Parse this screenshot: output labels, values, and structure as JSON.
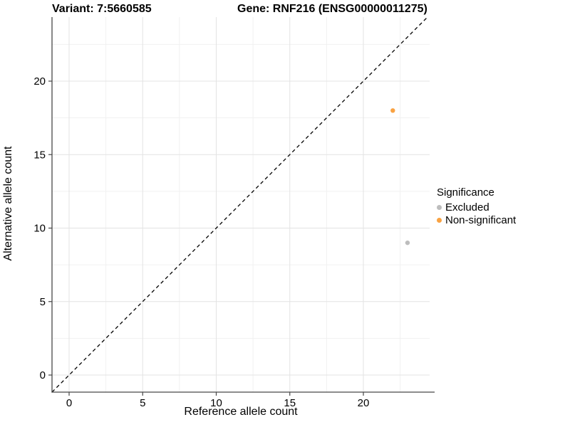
{
  "header": {
    "variant_title": "Variant: 7:5660585",
    "gene_title": "Gene: RNF216 (ENSG00000011275)"
  },
  "axes": {
    "x_label": "Reference allele count",
    "y_label": "Alternative allele count"
  },
  "legend": {
    "title": "Significance",
    "items": [
      {
        "label": "Excluded",
        "color": "#BDBDBD"
      },
      {
        "label": "Non-significant",
        "color": "#F9A242"
      }
    ]
  },
  "chart_data": {
    "type": "scatter",
    "title": "Variant: 7:5660585   Gene: RNF216 (ENSG00000011275)",
    "xlabel": "Reference allele count",
    "ylabel": "Alternative allele count",
    "xlim": [
      -1.16,
      24.5
    ],
    "ylim": [
      -1.16,
      24.4
    ],
    "x_ticks": [
      0,
      5,
      10,
      15,
      20
    ],
    "y_ticks": [
      0,
      5,
      10,
      15,
      20
    ],
    "minor_gridlines": [
      2.5,
      7.5,
      12.5,
      17.5,
      22.5
    ],
    "grid": true,
    "legend_title": "Significance",
    "legend_position": "right",
    "identity_line": {
      "equation": "y = x",
      "style": "dashed",
      "color": "#000000"
    },
    "series": [
      {
        "name": "Excluded",
        "color": "#BDBDBD",
        "points": [
          {
            "x": 23,
            "y": 9
          }
        ]
      },
      {
        "name": "Non-significant",
        "color": "#F9A242",
        "points": [
          {
            "x": 22,
            "y": 18
          }
        ]
      }
    ]
  },
  "colors": {
    "background": "#FFFFFF",
    "grid_major": "#E3E3E3",
    "grid_minor": "#F1F1F1",
    "axis_line": "#474747",
    "tick_label": "#000000",
    "excluded": "#BDBDBD",
    "non_significant": "#F9A242"
  }
}
